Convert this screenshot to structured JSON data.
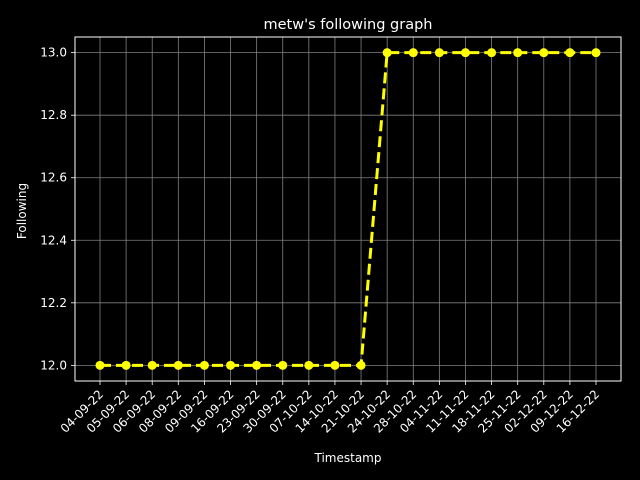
{
  "chart_data": {
    "type": "line",
    "title": "metw's following graph",
    "xlabel": "Timestamp",
    "ylabel": "Following",
    "categories": [
      "04-09-22",
      "05-09-22",
      "06-09-22",
      "08-09-22",
      "09-09-22",
      "16-09-22",
      "23-09-22",
      "30-09-22",
      "07-10-22",
      "14-10-22",
      "21-10-22",
      "24-10-22",
      "28-10-22",
      "04-11-22",
      "11-11-22",
      "18-11-22",
      "25-11-22",
      "02-12-22",
      "09-12-22",
      "16-12-22"
    ],
    "series": [
      {
        "name": "Following",
        "values": [
          12,
          12,
          12,
          12,
          12,
          12,
          12,
          12,
          12,
          12,
          12,
          13,
          13,
          13,
          13,
          13,
          13,
          13,
          13,
          13
        ]
      }
    ],
    "ylim": [
      11.95,
      13.05
    ],
    "yticks": [
      12.0,
      12.2,
      12.4,
      12.6,
      12.8,
      13.0
    ],
    "grid": true,
    "line_style": "dashed",
    "marker": "circle",
    "colors": {
      "background": "#000000",
      "axes": "#000000",
      "line": "#ffff00",
      "grid": "#808080",
      "text": "#ffffff"
    }
  }
}
